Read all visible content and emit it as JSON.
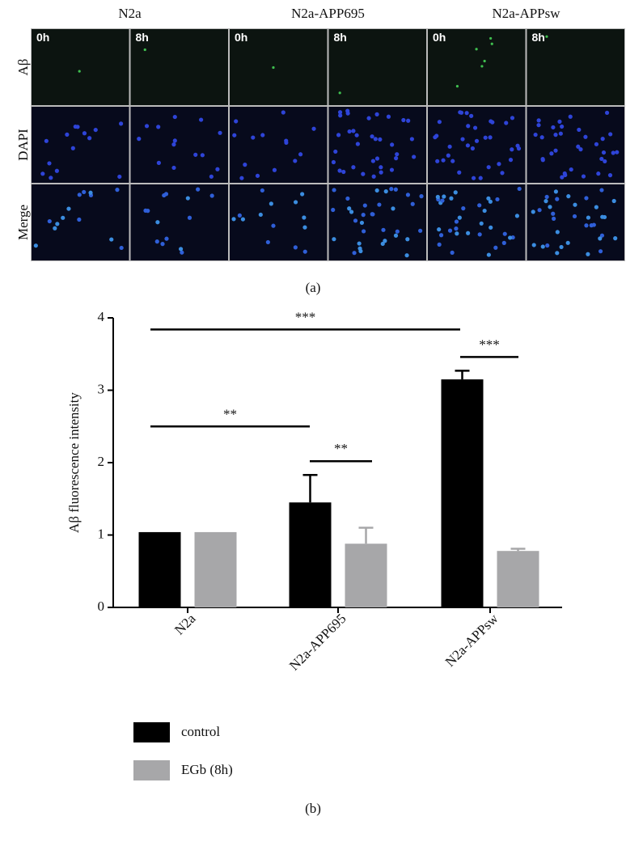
{
  "panel_a": {
    "columns": [
      "N2a",
      "N2a-APP695",
      "N2a-APPsw"
    ],
    "rows": [
      "Aβ",
      "DAPI",
      "Merge"
    ],
    "time_labels": [
      "0h",
      "8h",
      "0h",
      "8h",
      "0h",
      "8h"
    ],
    "caption": "(a)"
  },
  "chart_data": {
    "type": "bar",
    "categories": [
      "N2a",
      "N2a-APP695",
      "N2a-APPsw"
    ],
    "series": [
      {
        "name": "control",
        "color": "#000000",
        "values": [
          1.04,
          1.45,
          3.15
        ],
        "errors": [
          null,
          0.38,
          0.12
        ]
      },
      {
        "name": "EGb (8h)",
        "color": "#a7a7a9",
        "values": [
          1.04,
          0.88,
          0.78
        ],
        "errors": [
          null,
          0.22,
          0.03
        ]
      }
    ],
    "ylabel": "Aβ fluorescence intensity",
    "ylim": [
      0,
      4
    ],
    "yticks": [
      0,
      1,
      2,
      3,
      4
    ],
    "annotations": [
      {
        "text": "***",
        "y": 3.84
      },
      {
        "text": "***",
        "y": 3.46
      },
      {
        "text": "**",
        "y": 2.5
      },
      {
        "text": "**",
        "y": 2.02
      }
    ],
    "legend": "bottom-left",
    "caption": "(b)"
  }
}
